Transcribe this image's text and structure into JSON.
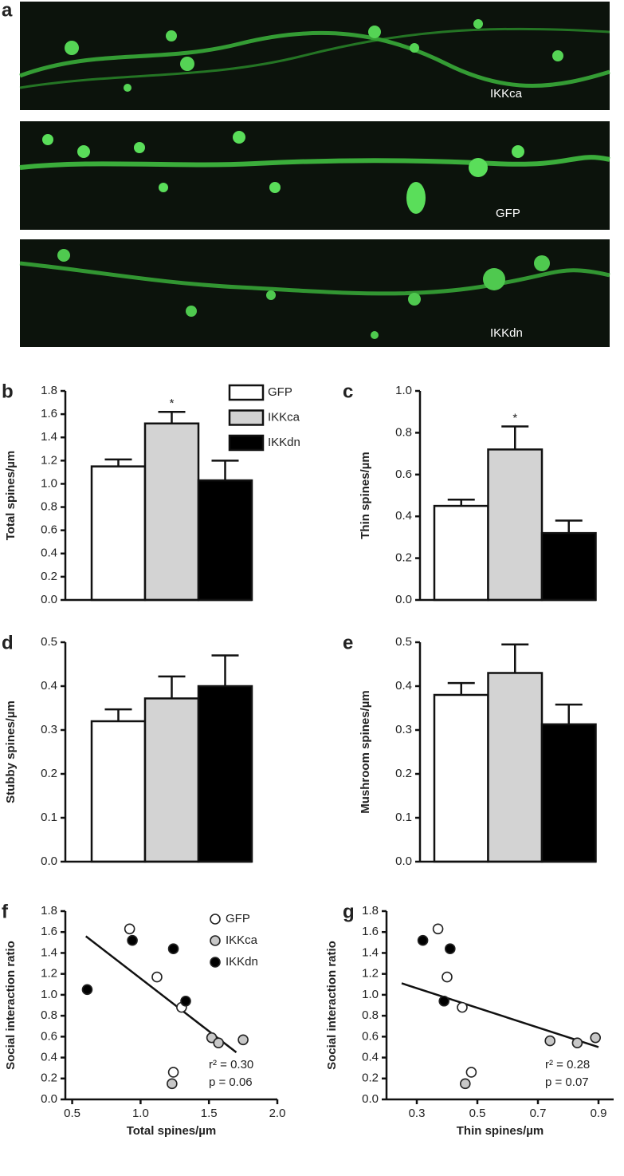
{
  "panel_a": {
    "label": "a",
    "images": [
      {
        "label": "IKKca"
      },
      {
        "label": "GFP"
      },
      {
        "label": "IKKdn"
      }
    ]
  },
  "chart_data": [
    {
      "type": "bar",
      "panel": "b",
      "ylabel": "Total spines/µm",
      "ylim": [
        0,
        1.8
      ],
      "yticks": [
        {
          "value": 0,
          "label": "0.0"
        },
        0.2,
        0.4,
        0.6,
        0.8,
        {
          "value": 1,
          "label": "1.0"
        },
        1.2,
        1.4,
        1.6,
        1.8
      ],
      "values": [
        1.15,
        1.52,
        1.03
      ],
      "errors": [
        0.06,
        0.1,
        0.17
      ],
      "colors": [
        "#ffffff",
        "#d3d3d3",
        "#000000"
      ],
      "significance": [
        null,
        "*",
        null
      ],
      "legend_labels": [
        "GFP",
        "IKKca",
        "IKKdn"
      ]
    },
    {
      "type": "bar",
      "panel": "c",
      "ylabel": "Thin spines/µm",
      "ylim": [
        0,
        1
      ],
      "yticks": [
        {
          "value": 0,
          "label": "0.0"
        },
        0.2,
        0.4,
        0.6,
        0.8,
        {
          "value": 1,
          "label": "1.0"
        }
      ],
      "values": [
        0.45,
        0.72,
        0.32
      ],
      "errors": [
        0.03,
        0.11,
        0.06
      ],
      "colors": [
        "#ffffff",
        "#d3d3d3",
        "#000000"
      ],
      "significance": [
        null,
        "*",
        null
      ]
    },
    {
      "type": "bar",
      "panel": "d",
      "ylabel": "Stubby spines/µm",
      "ylim": [
        0,
        0.5
      ],
      "yticks": [
        {
          "value": 0,
          "label": "0.0"
        },
        0.1,
        0.2,
        0.3,
        0.4,
        0.5
      ],
      "values": [
        0.32,
        0.372,
        0.4
      ],
      "errors": [
        0.027,
        0.05,
        0.07
      ],
      "colors": [
        "#ffffff",
        "#d3d3d3",
        "#000000"
      ]
    },
    {
      "type": "bar",
      "panel": "e",
      "ylabel": "Mushroom spines/µm",
      "ylim": [
        0,
        0.5
      ],
      "yticks": [
        {
          "value": 0,
          "label": "0.0"
        },
        0.1,
        0.2,
        0.3,
        0.4,
        0.5
      ],
      "values": [
        0.38,
        0.43,
        0.313
      ],
      "errors": [
        0.027,
        0.065,
        0.045
      ],
      "colors": [
        "#ffffff",
        "#d3d3d3",
        "#000000"
      ]
    },
    {
      "type": "scatter",
      "panel": "f",
      "ylabel": "Social interaction ratio",
      "xlabel": "Total spines/µm",
      "xlim": [
        0.45,
        2.0
      ],
      "xticks": [
        0.5,
        {
          "value": 1,
          "label": "1.0"
        },
        1.5,
        {
          "value": 2,
          "label": "2.0"
        }
      ],
      "ylim": [
        0,
        1.8
      ],
      "yticks": [
        {
          "value": 0,
          "label": "0.0"
        },
        0.2,
        0.4,
        0.6,
        0.8,
        {
          "value": 1,
          "label": "1.0"
        },
        1.2,
        1.4,
        1.6,
        1.8
      ],
      "series": [
        {
          "name": "GFP",
          "color": "#ffffff",
          "x": [
            0.92,
            1.12,
            1.3,
            1.24
          ],
          "values": [
            1.63,
            1.17,
            0.88,
            0.26
          ]
        },
        {
          "name": "IKKca",
          "color": "#c8c8c8",
          "x": [
            1.52,
            1.57,
            1.75,
            1.23
          ],
          "values": [
            0.59,
            0.54,
            0.57,
            0.15
          ]
        },
        {
          "name": "IKKdn",
          "color": "#000000",
          "x": [
            0.61,
            0.94,
            1.24,
            1.33
          ],
          "values": [
            1.05,
            1.52,
            1.44,
            0.94
          ]
        }
      ],
      "fit": {
        "x": [
          0.6,
          1.7
        ],
        "values": [
          1.56,
          0.45
        ]
      },
      "stats": [
        "r² = 0.30",
        "p = 0.06"
      ],
      "legend": "top-right"
    },
    {
      "type": "scatter",
      "panel": "g",
      "ylabel": "Social interaction ratio",
      "xlabel": "Thin spines/µm",
      "xlim": [
        0.2,
        0.95
      ],
      "xticks": [
        0.3,
        0.5,
        0.7,
        0.9
      ],
      "ylim": [
        0,
        1.8
      ],
      "yticks": [
        {
          "value": 0,
          "label": "0.0"
        },
        0.2,
        0.4,
        0.6,
        0.8,
        {
          "value": 1,
          "label": "1.0"
        },
        1.2,
        1.4,
        1.6,
        1.8
      ],
      "series": [
        {
          "name": "GFP",
          "color": "#ffffff",
          "x": [
            0.37,
            0.4,
            0.45,
            0.48
          ],
          "values": [
            1.63,
            1.17,
            0.88,
            0.26
          ]
        },
        {
          "name": "IKKca",
          "color": "#c8c8c8",
          "x": [
            0.74,
            0.83,
            0.89,
            0.46
          ],
          "values": [
            0.56,
            0.54,
            0.59,
            0.15
          ]
        },
        {
          "name": "IKKdn",
          "color": "#000000",
          "x": [
            0.32,
            0.41,
            0.39
          ],
          "values": [
            1.52,
            1.44,
            0.94
          ]
        }
      ],
      "fit": {
        "x": [
          0.25,
          0.9
        ],
        "values": [
          1.11,
          0.5
        ]
      },
      "stats": [
        "r² = 0.28",
        "p = 0.07"
      ]
    }
  ]
}
